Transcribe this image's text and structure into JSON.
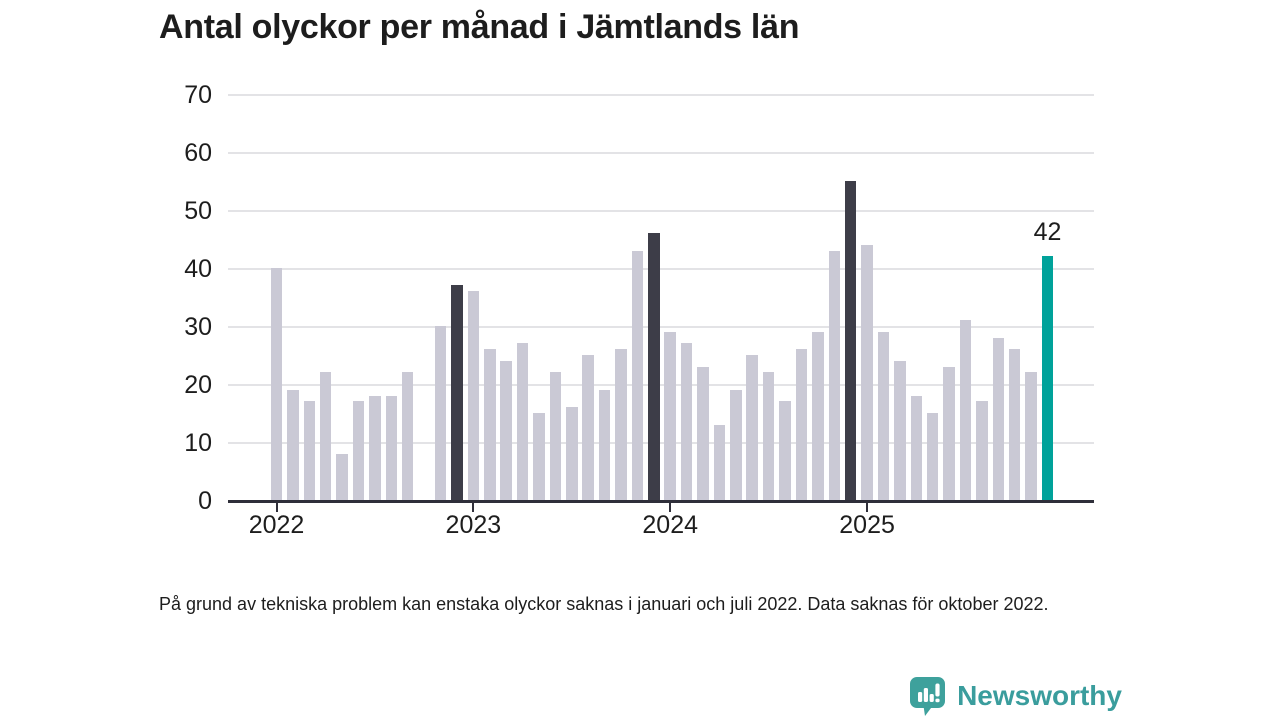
{
  "title": "Antal olyckor per månad i Jämtlands län",
  "footnote": "På grund av tekniska problem kan enstaka olyckor saknas i januari och juli 2022. Data saknas för oktober 2022.",
  "branding": {
    "name": "Newsworthy",
    "icon": "bar-chart-speech-bubble-icon",
    "wordmark_color": "#3a9d9d",
    "icon_color": "#3ea19c"
  },
  "colors": {
    "bar_default": "#cac9d5",
    "bar_dark": "#3d3d48",
    "bar_highlight": "#00a29a",
    "axis": "#2f2f3a",
    "gridline": "#e3e3e6",
    "text": "#1d1d1d"
  },
  "chart_data": {
    "type": "bar",
    "title": "Antal olyckor per månad i Jämtlands län",
    "xlabel": "",
    "ylabel": "",
    "ylim": [
      0,
      70
    ],
    "yticks": [
      0,
      10,
      20,
      30,
      40,
      50,
      60,
      70
    ],
    "grid": true,
    "legend": "none",
    "months": [
      "2022-01",
      "2022-02",
      "2022-03",
      "2022-04",
      "2022-05",
      "2022-06",
      "2022-07",
      "2022-08",
      "2022-09",
      "2022-10",
      "2022-11",
      "2022-12",
      "2023-01",
      "2023-02",
      "2023-03",
      "2023-04",
      "2023-05",
      "2023-06",
      "2023-07",
      "2023-08",
      "2023-09",
      "2023-10",
      "2023-11",
      "2023-12",
      "2024-01",
      "2024-02",
      "2024-03",
      "2024-04",
      "2024-05",
      "2024-06",
      "2024-07",
      "2024-08",
      "2024-09",
      "2024-10",
      "2024-11",
      "2024-12",
      "2025-01",
      "2025-02",
      "2025-03",
      "2025-04",
      "2025-05",
      "2025-06",
      "2025-07",
      "2025-08",
      "2025-09",
      "2025-10",
      "2025-11",
      "2025-12"
    ],
    "values": [
      40,
      19,
      17,
      22,
      8,
      17,
      18,
      18,
      22,
      null,
      30,
      37,
      36,
      26,
      24,
      27,
      15,
      22,
      16,
      25,
      19,
      26,
      43,
      46,
      29,
      27,
      23,
      13,
      19,
      25,
      22,
      17,
      26,
      29,
      43,
      55,
      44,
      29,
      24,
      18,
      15,
      23,
      31,
      17,
      28,
      26,
      22,
      42
    ],
    "bar_styles": {
      "11": "dark",
      "23": "dark",
      "35": "dark",
      "47": "highlight"
    },
    "year_ticks": [
      {
        "label": "2022",
        "month_index": 0
      },
      {
        "label": "2023",
        "month_index": 12
      },
      {
        "label": "2024",
        "month_index": 24
      },
      {
        "label": "2025",
        "month_index": 36
      }
    ],
    "annotation": {
      "month_index": 47,
      "text": "42"
    }
  }
}
